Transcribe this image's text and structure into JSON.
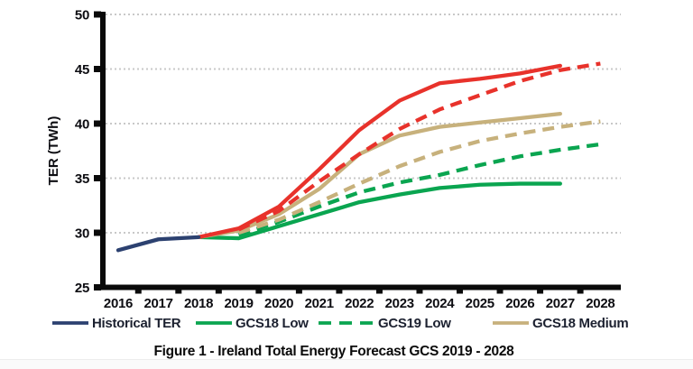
{
  "figure": {
    "caption": "Figure 1 - Ireland Total Energy Forecast GCS 2019 - 2028"
  },
  "legend": {
    "items": [
      {
        "label": "Historical TER",
        "series_id": "historical-ter"
      },
      {
        "label": "GCS18 Low",
        "series_id": "gcs18-low"
      },
      {
        "label": "GCS19 Low",
        "series_id": "gcs19-low"
      },
      {
        "label": "GCS18 Medium",
        "series_id": "gcs18-medium"
      }
    ]
  },
  "chart_data": {
    "type": "line",
    "title": "Figure 1 - Ireland Total Energy Forecast GCS 2019 - 2028",
    "xlabel": "",
    "ylabel": "TER (TWh)",
    "ylim": [
      25,
      50
    ],
    "y_ticks": [
      25,
      30,
      35,
      40,
      45,
      50
    ],
    "x_ticks": [
      2016,
      2017,
      2018,
      2019,
      2020,
      2021,
      2022,
      2023,
      2024,
      2025,
      2026,
      2027,
      2028
    ],
    "grid": "horizontal-dotted",
    "legend_position": "bottom",
    "axis_color": "#0a0a0a",
    "grid_color": "#c8c8c8",
    "series": [
      {
        "id": "gcs18-low",
        "label": "GCS18 Low",
        "color": "#0aa550",
        "dash": false,
        "in_legend": true,
        "years": [
          2018,
          2019,
          2020,
          2021,
          2022,
          2023,
          2024,
          2025,
          2026,
          2027
        ],
        "values": [
          29.6,
          29.5,
          30.6,
          31.7,
          32.8,
          33.5,
          34.1,
          34.4,
          34.5,
          34.5
        ]
      },
      {
        "id": "gcs19-low",
        "label": "GCS19 Low",
        "color": "#0aa550",
        "dash": true,
        "in_legend": true,
        "years": [
          2019,
          2020,
          2021,
          2022,
          2023,
          2024,
          2025,
          2026,
          2027,
          2028
        ],
        "values": [
          29.8,
          31.0,
          32.4,
          33.7,
          34.6,
          35.3,
          36.2,
          37.0,
          37.6,
          38.1
        ]
      },
      {
        "id": "gcs18-medium",
        "label": "GCS18 Medium",
        "color": "#c7b17c",
        "dash": false,
        "in_legend": true,
        "years": [
          2018,
          2019,
          2020,
          2021,
          2022,
          2023,
          2024,
          2025,
          2026,
          2027
        ],
        "values": [
          29.6,
          30.2,
          31.7,
          34.0,
          37.2,
          38.9,
          39.7,
          40.1,
          40.5,
          40.9
        ]
      },
      {
        "id": "unlabeled-tan-dashed",
        "label": "",
        "color": "#c7b17c",
        "dash": true,
        "in_legend": false,
        "years": [
          2019,
          2020,
          2021,
          2022,
          2023,
          2024,
          2025,
          2026,
          2027,
          2028
        ],
        "values": [
          30.0,
          31.2,
          32.8,
          34.5,
          36.1,
          37.4,
          38.4,
          39.1,
          39.7,
          40.2
        ]
      },
      {
        "id": "unlabeled-red-solid",
        "label": "",
        "color": "#e8322b",
        "dash": false,
        "in_legend": false,
        "years": [
          2018,
          2019,
          2020,
          2021,
          2022,
          2023,
          2024,
          2025,
          2026,
          2027
        ],
        "values": [
          29.6,
          30.4,
          32.4,
          35.8,
          39.4,
          42.1,
          43.7,
          44.1,
          44.6,
          45.3
        ]
      },
      {
        "id": "unlabeled-red-dashed",
        "label": "",
        "color": "#e8322b",
        "dash": true,
        "in_legend": false,
        "years": [
          2019,
          2020,
          2021,
          2022,
          2023,
          2024,
          2025,
          2026,
          2027,
          2028
        ],
        "values": [
          30.3,
          32.0,
          34.7,
          37.2,
          39.5,
          41.3,
          42.6,
          43.9,
          44.9,
          45.5
        ]
      },
      {
        "id": "historical-ter",
        "label": "Historical TER",
        "color": "#2c4170",
        "dash": false,
        "in_legend": true,
        "years": [
          2016,
          2017,
          2018
        ],
        "values": [
          28.4,
          29.4,
          29.6
        ]
      }
    ]
  }
}
